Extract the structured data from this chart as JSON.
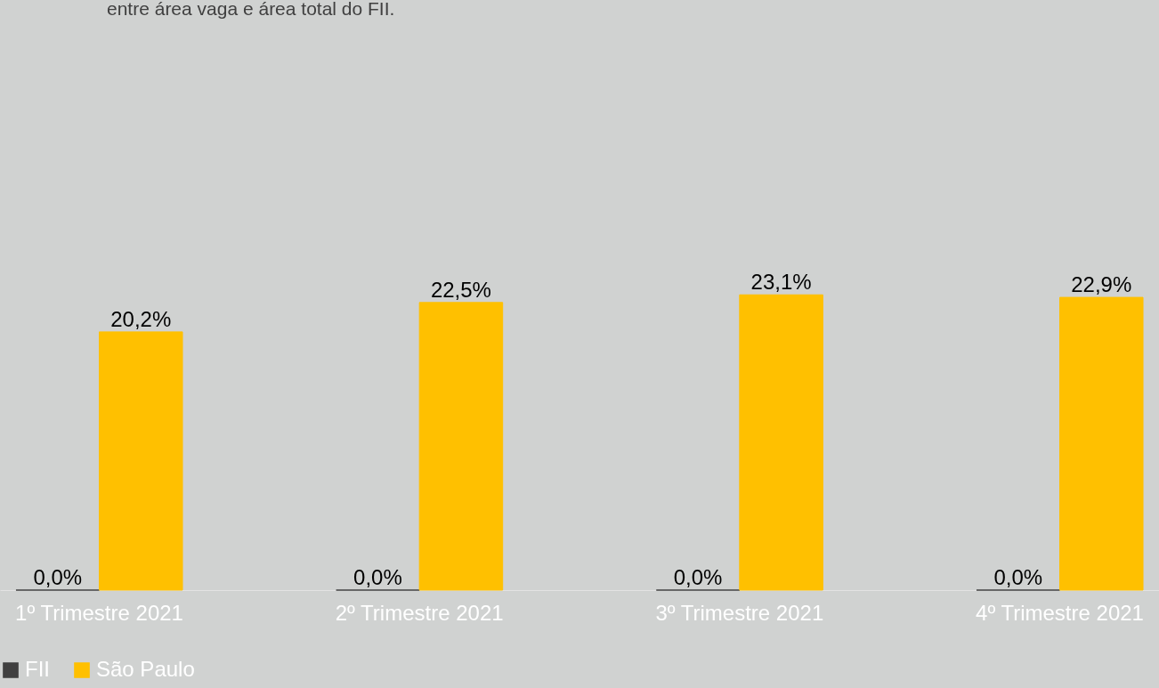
{
  "chart_data": {
    "type": "bar",
    "title": "entre área vaga e área total do FII.",
    "categories": [
      "1º Trimestre 2021",
      "2º Trimestre 2021",
      "3º Trimestre 2021",
      "4º Trimestre 2021"
    ],
    "series": [
      {
        "name": "FII",
        "color": "#404040",
        "values": [
          0.0,
          0.0,
          0.0,
          0.0
        ],
        "value_labels": [
          "0,0%",
          "0,0%",
          "0,0%",
          "0,0%"
        ]
      },
      {
        "name": "São Paulo",
        "color": "#ffc000",
        "values": [
          20.2,
          22.5,
          23.1,
          22.9
        ],
        "value_labels": [
          "20,2%",
          "22,5%",
          "23,1%",
          "22,9%"
        ]
      }
    ],
    "legend": "bottom",
    "grid": false
  }
}
